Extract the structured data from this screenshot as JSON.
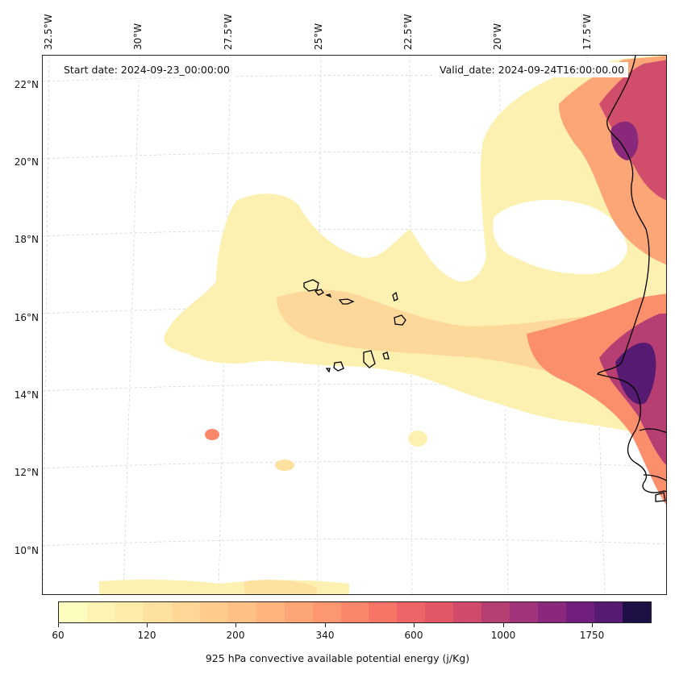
{
  "map": {
    "start_date": "Start date: 2024-09-23_00:00:00",
    "valid_date": "Valid_date: 2024-09-24T16:00:00.00",
    "lon_labels": [
      "32.5°W",
      "30°W",
      "27.5°W",
      "25°W",
      "22.5°W",
      "20°W",
      "17.5°W"
    ],
    "lat_labels": [
      "22°N",
      "20°N",
      "18°N",
      "16°N",
      "14°N",
      "12°N",
      "10°N"
    ],
    "grid": "on",
    "coastline_color": "#000000"
  },
  "colorbar": {
    "ticks": [
      "60",
      "120",
      "200",
      "340",
      "600",
      "1000",
      "1750"
    ],
    "title": "925 hPa convective available potential energy (j/Kg)",
    "colors": [
      "#fcfdbf",
      "#fdf4b4",
      "#feebaa",
      "#fee09f",
      "#fed696",
      "#fecb8d",
      "#fec085",
      "#feb47c",
      "#fda675",
      "#fc976f",
      "#fa876a",
      "#f67567",
      "#ee6466",
      "#e15768",
      "#cf4a6b",
      "#b63e73",
      "#a1337a",
      "#8a297c",
      "#701f7c",
      "#561a72",
      "#1c1045"
    ]
  }
}
